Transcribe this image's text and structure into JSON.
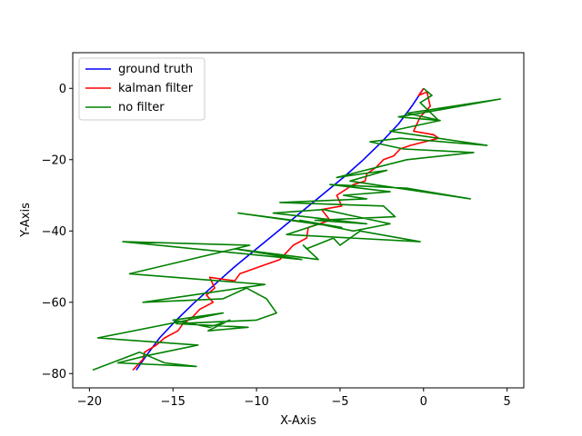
{
  "chart_data": {
    "type": "line",
    "xlabel": "X-Axis",
    "ylabel": "Y-Axis",
    "xlim": [
      -21,
      6
    ],
    "ylim": [
      -84,
      10
    ],
    "xticks": [
      -20,
      -15,
      -10,
      -5,
      0,
      5
    ],
    "yticks": [
      0,
      -20,
      -40,
      -60,
      -80
    ],
    "xtick_labels": [
      "−20",
      "−15",
      "−10",
      "−5",
      "0",
      "5"
    ],
    "ytick_labels": [
      "0",
      "−20",
      "−40",
      "−60",
      "−80"
    ],
    "grid": false,
    "legend_placement": "top-left",
    "series": [
      {
        "name": "ground truth",
        "color": "#0000ff",
        "x": [
          0,
          -0.7,
          -1.5,
          -2.5,
          -3.6,
          -4.8,
          -6.1,
          -7.4,
          -8.7,
          -10.0,
          -11.3,
          -12.5,
          -13.7,
          -14.8,
          -15.8,
          -16.6,
          -17.2
        ],
        "y": [
          0,
          -5,
          -10,
          -15,
          -20,
          -25,
          -30,
          -35,
          -40,
          -45,
          -50,
          -55,
          -60,
          -65,
          -70,
          -75,
          -79
        ]
      },
      {
        "name": "kalman filter",
        "color": "#ff0000",
        "x": [
          0.0,
          -0.3,
          0.2,
          0.4,
          -0.2,
          -0.6,
          0.6,
          0.9,
          -0.8,
          -1.4,
          -1.8,
          -2.4,
          -2.8,
          -3.4,
          -3.5,
          -4.2,
          -5.2,
          -4.9,
          -6.1,
          -5.6,
          -6.9,
          -7.0,
          -7.8,
          -8.0,
          -8.6,
          -9.8,
          -11.0,
          -11.3,
          -12.8,
          -12.5,
          -13.0,
          -12.6,
          -13.4,
          -13.8,
          -14.4,
          -14.7,
          -15.5,
          -16.0,
          -16.7,
          -16.8,
          -17.4
        ],
        "y": [
          0,
          -2,
          -1,
          -5,
          -8,
          -12,
          -13,
          -14,
          -16,
          -17,
          -19,
          -20,
          -22,
          -24,
          -26,
          -27,
          -30,
          -33,
          -34,
          -37,
          -39,
          -42,
          -44,
          -45,
          -48,
          -50,
          -52,
          -54,
          -53,
          -56,
          -58,
          -60,
          -62,
          -64,
          -66,
          -68,
          -70,
          -72,
          -74,
          -76,
          -79
        ]
      },
      {
        "name": "no filter",
        "color": "#008000",
        "x": [
          0.0,
          0.5,
          -0.2,
          0.9,
          -1.5,
          1.0,
          4.6,
          -1.0,
          1.0,
          -2.0,
          3.8,
          -1.4,
          -3.2,
          -1.2,
          3.0,
          -1.0,
          -5.2,
          -2.2,
          -4.4,
          2.8,
          -1.0,
          -5.6,
          -2.0,
          -4.8,
          -3.4,
          -8.6,
          -2.4,
          -1.7,
          -6.5,
          -3.4,
          -9.0,
          -6.0,
          -2.0,
          -4.2,
          -7.4,
          -4.9,
          -11.1,
          -6.2,
          -8.2,
          -0.2,
          -3.8,
          -5.0,
          -5.4,
          -7.0,
          -7.2,
          -6.3,
          -11.3,
          -7.3,
          -18.0,
          -10.4,
          -17.6,
          -9.5,
          -16.8,
          -12.0,
          -10.6,
          -9.4,
          -8.8,
          -10.0,
          -14.8,
          -10.5,
          -12.9,
          -11.6,
          -12.8,
          -13.9,
          -15.0,
          -12.0,
          -19.5,
          -13.5,
          -16.6,
          -18.3,
          -13.6,
          -15.5,
          -17.0,
          -19.8
        ],
        "y": [
          0,
          -2,
          -4,
          -9,
          -8,
          -6,
          -3,
          -7,
          -9,
          -12,
          -16,
          -14,
          -15,
          -17,
          -18,
          -20,
          -25,
          -23,
          -26,
          -31,
          -28,
          -27,
          -29,
          -30,
          -31,
          -32,
          -33,
          -36,
          -37,
          -38,
          -35,
          -34,
          -38,
          -40,
          -37,
          -39,
          -35,
          -38,
          -41,
          -43,
          -40,
          -44,
          -42,
          -45,
          -44,
          -48,
          -45,
          -48,
          -43,
          -44,
          -52,
          -55,
          -60,
          -59,
          -56,
          -59,
          -63,
          -65,
          -66,
          -67,
          -68,
          -65,
          -67,
          -66,
          -65,
          -63,
          -70,
          -72,
          -75,
          -77,
          -78,
          -77,
          -74,
          -79
        ]
      }
    ]
  }
}
